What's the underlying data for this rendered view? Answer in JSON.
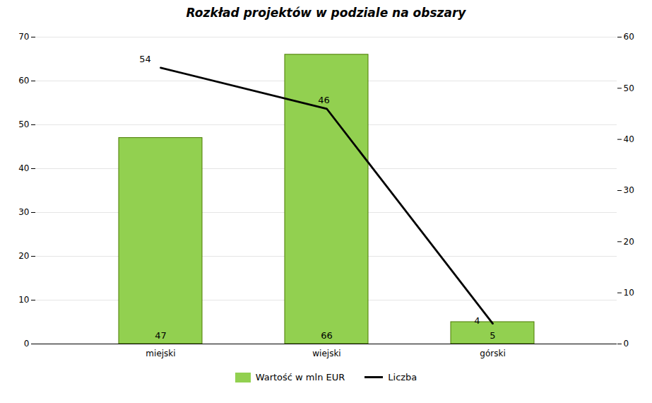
{
  "chart_data": {
    "type": "bar",
    "title": "Rozkład projektów w podziale na obszary",
    "categories": [
      "miejski",
      "wiejski",
      "górski"
    ],
    "series": [
      {
        "name": "Wartość w mln EUR",
        "type": "bar",
        "color": "#92D050",
        "values": [
          47,
          66,
          5
        ]
      },
      {
        "name": "Liczba",
        "type": "line",
        "color": "#000000",
        "axis": "y2",
        "values": [
          54,
          46,
          4
        ]
      }
    ],
    "ylim": [
      0,
      70
    ],
    "yticks": [
      0,
      10,
      20,
      30,
      40,
      50,
      60,
      70
    ],
    "y2lim": [
      0,
      60
    ],
    "y2ticks": [
      0,
      10,
      20,
      30,
      40,
      50,
      60
    ],
    "grid": true,
    "legend": "bottom",
    "data_labels": true
  }
}
